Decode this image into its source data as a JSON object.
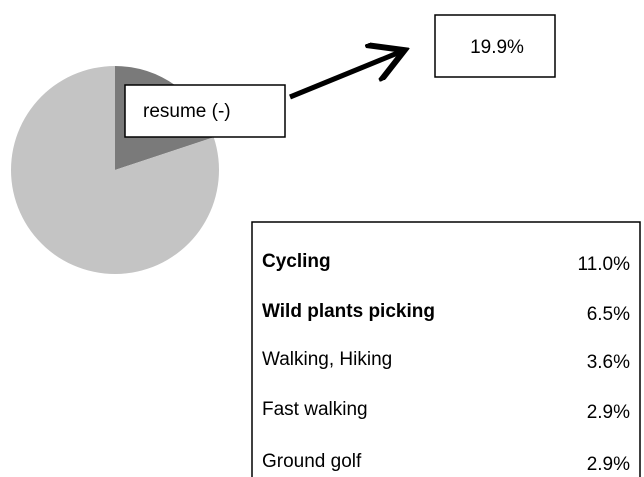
{
  "chart_data": {
    "type": "pie",
    "categories": [
      "resume (-)",
      null
    ],
    "values": [
      19.9,
      80.1
    ],
    "value_labels": [
      "19.9%",
      null
    ],
    "colors": [
      "#7a7a7a",
      "#c4c4c4"
    ]
  },
  "table": {
    "rows": [
      [
        "Cycling",
        "11.0%"
      ],
      [
        "Wild plants picking",
        "6.5%"
      ],
      [
        "Walking, Hiking",
        "3.6%"
      ],
      [
        "Fast walking",
        "2.9%"
      ],
      [
        "Ground golf",
        "2.9%"
      ]
    ]
  }
}
